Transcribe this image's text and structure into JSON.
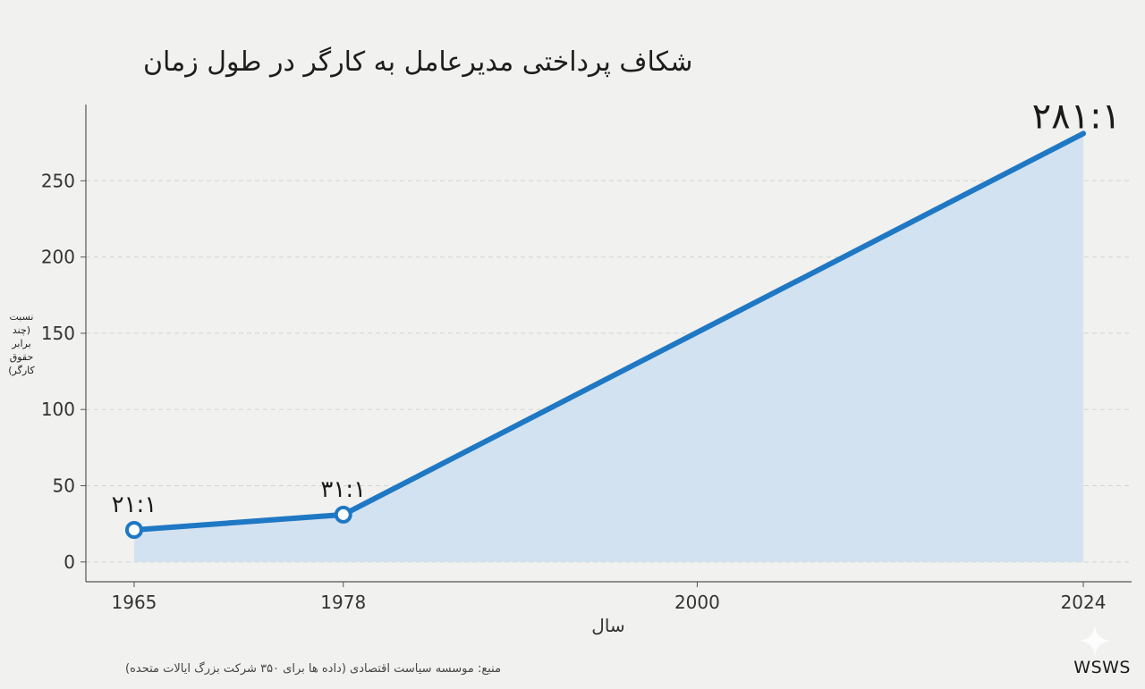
{
  "chart_data": {
    "type": "area",
    "title": "شکاف پرداختی مدیرعامل به کارگر در طول زمان",
    "xlabel": "سال",
    "ylabel_lines": [
      "نسبت",
      "(چند",
      "برابر",
      "حقوق",
      "کارگر)"
    ],
    "x": [
      1965,
      1978,
      2024
    ],
    "x_ticks": [
      1965,
      1978,
      2000,
      2024
    ],
    "xlim": [
      1962,
      2027
    ],
    "y_values": [
      21,
      31,
      281
    ],
    "ylim": [
      -13,
      300
    ],
    "y_ticks": [
      0,
      50,
      100,
      150,
      200,
      250
    ],
    "grid": true,
    "data_labels": [
      "۲۱:۱",
      "۳۱:۱",
      "۲۸۱:۱"
    ],
    "markers": [
      true,
      true,
      false
    ],
    "colors": {
      "line": "#1f78c4",
      "fill": "#cfe0ef",
      "grid": "#d3d3d3",
      "axis": "#555555"
    }
  },
  "source_note": "منبع: موسسه سیاست اقتصادی (داده ها برای ۳۵۰ شرکت بزرگ ایالات متحده)",
  "watermark": "WSWS",
  "watermark_icon": "sparkle-icon"
}
